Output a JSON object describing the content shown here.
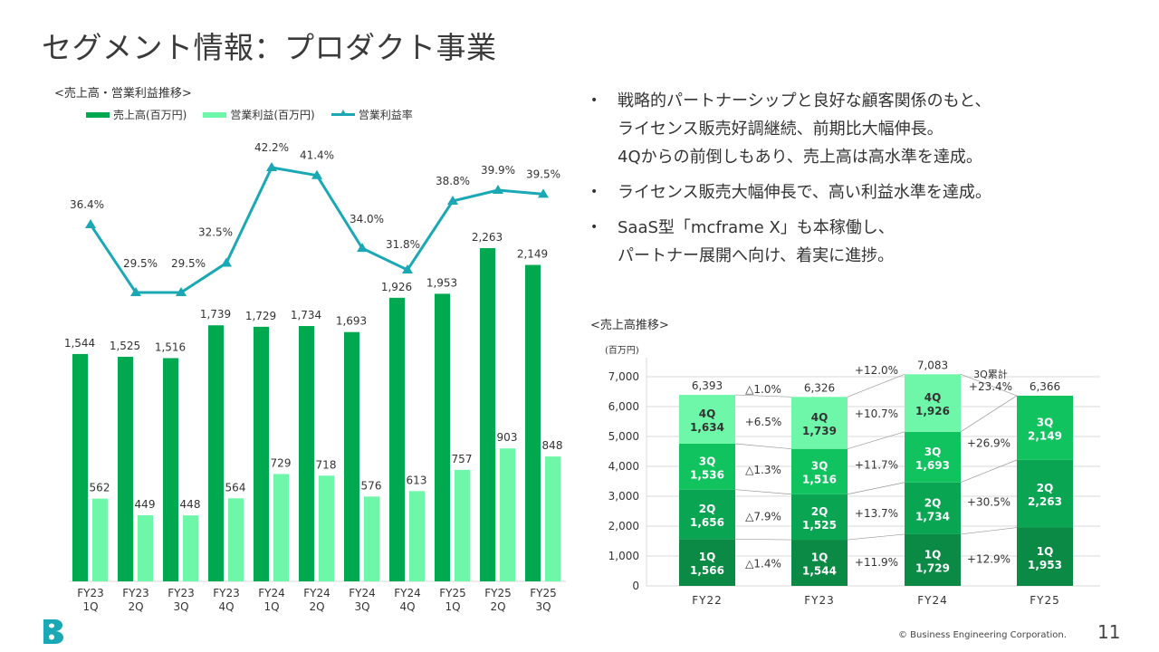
{
  "page": {
    "title": "セグメント情報：プロダクト事業",
    "footer": "© Business Engineering Corporation.",
    "page_number": "11",
    "logo": "b-logo-icon"
  },
  "colors": {
    "revenue": "#00a84f",
    "profit": "#6ff7a9",
    "margin_line": "#1aa8b5",
    "q1": "#0a8a45",
    "q2": "#0aa553",
    "q3": "#10c35e",
    "q4": "#6ff7a9",
    "grid": "#d9d9d9",
    "text": "#333333"
  },
  "left_chart_title": "<売上高・営業利益推移>",
  "bullets": [
    {
      "lines": [
        "戦略的パートナーシップと良好な顧客関係のもと、",
        "ライセンス販売好調継続、前期比大幅伸長。",
        "4Qからの前倒しもあり、売上高は高水準を達成。"
      ]
    },
    {
      "lines": [
        "ライセンス販売大幅伸長で、高い利益水準を達成。"
      ]
    },
    {
      "lines": [
        "SaaS型「mcframe X」も本稼働し、",
        "パートナー展開へ向け、着実に進捗。"
      ]
    }
  ],
  "right_chart_title": "<売上高推移>",
  "chart_data": [
    {
      "type": "bar",
      "title": "<売上高・営業利益推移>",
      "legend": [
        "売上高(百万円)",
        "営業利益(百万円)",
        "営業利益率"
      ],
      "legend_position": "top",
      "categories": [
        [
          "FY23",
          "1Q"
        ],
        [
          "FY23",
          "2Q"
        ],
        [
          "FY23",
          "3Q"
        ],
        [
          "FY23",
          "4Q"
        ],
        [
          "FY24",
          "1Q"
        ],
        [
          "FY24",
          "2Q"
        ],
        [
          "FY24",
          "3Q"
        ],
        [
          "FY24",
          "4Q"
        ],
        [
          "FY25",
          "1Q"
        ],
        [
          "FY25",
          "2Q"
        ],
        [
          "FY25",
          "3Q"
        ]
      ],
      "series": [
        {
          "name": "売上高(百万円)",
          "kind": "bar",
          "values": [
            1544,
            1525,
            1516,
            1739,
            1729,
            1734,
            1693,
            1926,
            1953,
            2263,
            2149
          ]
        },
        {
          "name": "営業利益(百万円)",
          "kind": "bar",
          "values": [
            562,
            449,
            448,
            564,
            729,
            718,
            576,
            613,
            757,
            903,
            848
          ]
        },
        {
          "name": "営業利益率",
          "kind": "line",
          "unit": "%",
          "values": [
            36.4,
            29.5,
            29.5,
            32.5,
            42.2,
            41.4,
            34.0,
            31.8,
            38.8,
            39.9,
            39.5
          ]
        }
      ],
      "grid": false
    },
    {
      "type": "bar",
      "stacked": true,
      "title": "<売上高推移>",
      "ylabel": "(百万円)",
      "ylim": [
        0,
        7000
      ],
      "yticks": [
        "0",
        "1,000",
        "2,000",
        "3,000",
        "4,000",
        "5,000",
        "6,000",
        "7,000"
      ],
      "grid": true,
      "categories": [
        "FY22",
        "FY23",
        "FY24",
        "FY25"
      ],
      "series": [
        {
          "name": "1Q",
          "values": [
            1566,
            1544,
            1729,
            1953
          ],
          "labels": [
            "1,566",
            "1,544",
            "1,729",
            "1,953"
          ]
        },
        {
          "name": "2Q",
          "values": [
            1656,
            1525,
            1734,
            2263
          ],
          "labels": [
            "1,656",
            "1,525",
            "1,734",
            "2,263"
          ]
        },
        {
          "name": "3Q",
          "values": [
            1536,
            1516,
            1693,
            2149
          ],
          "labels": [
            "1,536",
            "1,516",
            "1,693",
            "2,149"
          ]
        },
        {
          "name": "4Q",
          "values": [
            1634,
            1739,
            1926,
            null
          ],
          "labels": [
            "1,634",
            "1,739",
            "1,926",
            null
          ]
        }
      ],
      "totals": [
        "6,393",
        "6,326",
        "7,083",
        "6,366"
      ],
      "growth": [
        {
          "between": [
            "FY22",
            "FY23"
          ],
          "total": "△1.0%",
          "q4": "+6.5%",
          "q3": "△1.3%",
          "q2": "△7.9%",
          "q1": "△1.4%"
        },
        {
          "between": [
            "FY23",
            "FY24"
          ],
          "total": "+12.0%",
          "q4": "+10.7%",
          "q3": "+11.7%",
          "q2": "+13.7%",
          "q1": "+11.9%"
        },
        {
          "between": [
            "FY24",
            "FY25"
          ],
          "total_label": "3Q累計",
          "total": "+23.4%",
          "q3": "+26.9%",
          "q2": "+30.5%",
          "q1": "+12.9%"
        }
      ]
    }
  ]
}
